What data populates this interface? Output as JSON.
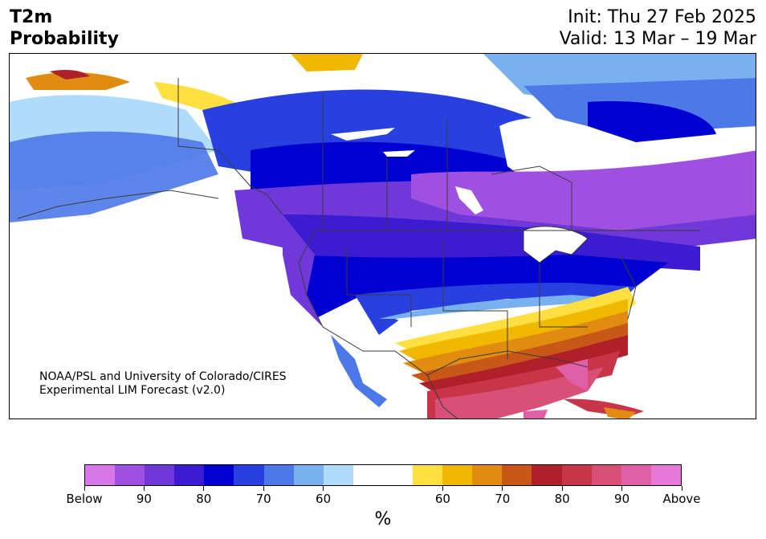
{
  "title": {
    "line1": "T2m",
    "line2": "Probability",
    "init": "Init: Thu 27 Feb 2025",
    "valid": "Valid: 13 Mar – 19 Mar"
  },
  "credit": {
    "line1": "NOAA/PSL and University of Colorado/CIRES",
    "line2": "Experimental LIM Forecast (v2.0)"
  },
  "colorbar": {
    "unit": "%",
    "colors": [
      "#d878e8",
      "#a050e0",
      "#7038d8",
      "#3c1cd0",
      "#0000d0",
      "#2840e0",
      "#4c78e8",
      "#78b0f0",
      "#b0dcfc",
      "#ffffff",
      "#ffffff",
      "#ffe040",
      "#f0b800",
      "#e08c10",
      "#c85818",
      "#b02028",
      "#c83448",
      "#d85078",
      "#e060a8",
      "#e878d8"
    ],
    "ticks": [
      "Below",
      "90",
      "80",
      "70",
      "60",
      "60",
      "70",
      "80",
      "90",
      "Above"
    ]
  },
  "legend": {
    "below_color": "#7038d8",
    "above_color": "#c83448"
  }
}
